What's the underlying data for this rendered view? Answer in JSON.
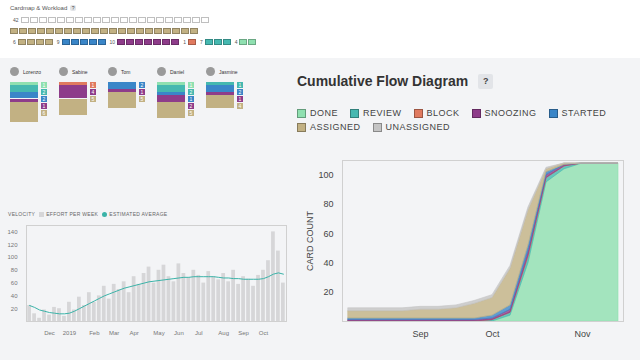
{
  "help_icon": "?",
  "cardmap": {
    "title": "Cardmap & Workload",
    "rows": [
      [
        {
          "status": "UNASSIGNED",
          "label": 42,
          "boxes": 21
        }
      ],
      [
        {
          "status": "ASSIGNED",
          "boxes": 21
        }
      ],
      [
        {
          "status": "ASSIGNED",
          "label": 6,
          "boxes": 4
        },
        {
          "status": "STARTED",
          "label": 9,
          "boxes": 5
        },
        {
          "status": "SNOOZING",
          "label": 10,
          "boxes": 7
        },
        {
          "status": "BLOCK",
          "label": 1,
          "boxes": 1
        },
        {
          "status": "REVIEW",
          "label": 7,
          "boxes": 3
        },
        {
          "status": "DONE",
          "label": 4,
          "boxes": 2
        }
      ]
    ]
  },
  "workload": [
    {
      "name": "Lorenzo",
      "segments": [
        {
          "status": "DONE",
          "count": 1
        },
        {
          "status": "REVIEW",
          "count": 2
        },
        {
          "status": "STARTED",
          "count": 2
        },
        {
          "status": "SNOOZING",
          "count": 1
        },
        {
          "status": "ASSIGNED",
          "count": 6
        }
      ]
    },
    {
      "name": "Sabine",
      "segments": [
        {
          "status": "BLOCK",
          "count": 1
        },
        {
          "status": "SNOOZING",
          "count": 4
        },
        {
          "status": "ASSIGNED",
          "count": 5
        }
      ]
    },
    {
      "name": "Tom",
      "segments": [
        {
          "status": "STARTED",
          "count": 2
        },
        {
          "status": "SNOOZING",
          "count": 1
        },
        {
          "status": "ASSIGNED",
          "count": 5
        }
      ]
    },
    {
      "name": "Daniel",
      "segments": [
        {
          "status": "DONE",
          "count": 1
        },
        {
          "status": "REVIEW",
          "count": 2
        },
        {
          "status": "STARTED",
          "count": 1
        },
        {
          "status": "SNOOZING",
          "count": 2
        },
        {
          "status": "ASSIGNED",
          "count": 5
        }
      ]
    },
    {
      "name": "Jasmine",
      "segments": [
        {
          "status": "REVIEW",
          "count": 1
        },
        {
          "status": "STARTED",
          "count": 2
        },
        {
          "status": "SNOOZING",
          "count": 1
        },
        {
          "status": "ASSIGNED",
          "count": 4
        }
      ]
    }
  ],
  "chart_data": [
    {
      "type": "bar",
      "title": "VELOCITY",
      "categories": [
        null,
        null,
        null,
        null,
        "Dec",
        null,
        null,
        null,
        "2019",
        null,
        null,
        null,
        null,
        "Feb",
        null,
        null,
        null,
        "Mar",
        null,
        null,
        null,
        "Apr",
        null,
        null,
        null,
        null,
        "May",
        null,
        null,
        null,
        "Jun",
        null,
        null,
        null,
        "Jul",
        null,
        null,
        null,
        null,
        "Aug",
        null,
        null,
        null,
        "Sep",
        null,
        null,
        null,
        "Oct",
        null,
        null,
        null,
        null
      ],
      "series": [
        {
          "name": "EFFORT PER WEEK",
          "type": "bar",
          "color": "#d6d6d8",
          "values": [
            25,
            12,
            5,
            18,
            10,
            22,
            20,
            8,
            30,
            18,
            38,
            25,
            45,
            30,
            40,
            55,
            35,
            58,
            50,
            62,
            45,
            70,
            58,
            75,
            85,
            60,
            80,
            88,
            70,
            62,
            90,
            75,
            68,
            80,
            72,
            60,
            78,
            70,
            65,
            75,
            62,
            80,
            58,
            70,
            66,
            55,
            72,
            80,
            95,
            140,
            110,
            60
          ]
        },
        {
          "name": "ESTIMATED AVERAGE",
          "type": "line",
          "color": "#3bb3a8",
          "values": [
            25,
            22,
            18,
            16,
            14,
            13,
            12,
            12,
            13,
            16,
            20,
            24,
            28,
            32,
            36,
            40,
            43,
            46,
            49,
            52,
            54,
            56,
            58,
            60,
            62,
            63,
            64,
            65,
            66,
            67,
            68,
            69,
            69,
            70,
            70,
            70,
            70,
            70,
            69,
            68,
            68,
            67,
            67,
            66,
            66,
            66,
            66,
            67,
            70,
            74,
            76,
            74
          ]
        }
      ],
      "ylim": [
        0,
        150
      ],
      "yticks": [
        20,
        40,
        60,
        80,
        100,
        120,
        140
      ],
      "grid": false,
      "legend": "top"
    },
    {
      "type": "area",
      "title": "Cumulative Flow Diagram",
      "y_label": "CARD COUNT",
      "stacked": true,
      "categories": [
        null,
        null,
        null,
        null,
        "Sep",
        null,
        null,
        null,
        "Oct",
        null,
        null,
        null,
        null,
        "Nov",
        null,
        null
      ],
      "series": [
        {
          "name": "DONE",
          "color": "#8fe0b0",
          "values": [
            0,
            0,
            0,
            0,
            0,
            0,
            0,
            0,
            0,
            4,
            40,
            95,
            104,
            108,
            108,
            108
          ]
        },
        {
          "name": "REVIEW",
          "color": "#45b8b0",
          "values": [
            0,
            0,
            0,
            0,
            0,
            0,
            0,
            0,
            1,
            2,
            4,
            3,
            2,
            0,
            0,
            0
          ]
        },
        {
          "name": "BLOCK",
          "color": "#e07a5f",
          "values": [
            0,
            0,
            0,
            0,
            0,
            0,
            0,
            0,
            0,
            0,
            1,
            0,
            0,
            0,
            0,
            0
          ]
        },
        {
          "name": "SNOOZING",
          "color": "#8e3c8a",
          "values": [
            1,
            1,
            1,
            1,
            1,
            1,
            1,
            1,
            1,
            2,
            3,
            2,
            1,
            0,
            0,
            0
          ]
        },
        {
          "name": "STARTED",
          "color": "#3a86c8",
          "values": [
            1,
            1,
            1,
            1,
            1,
            1,
            1,
            1,
            2,
            3,
            4,
            2,
            0,
            0,
            0,
            0
          ]
        },
        {
          "name": "ASSIGNED",
          "color": "#c2b183",
          "values": [
            5,
            5,
            5,
            5,
            6,
            6,
            7,
            10,
            12,
            25,
            24,
            2,
            1,
            0,
            0,
            0
          ]
        },
        {
          "name": "UNASSIGNED",
          "color": "#c4c4c4",
          "values": [
            2,
            2,
            2,
            2,
            2,
            2,
            2,
            2,
            2,
            2,
            2,
            1,
            0,
            0,
            0,
            0
          ]
        }
      ],
      "ylim": [
        0,
        110
      ],
      "yticks": [
        20,
        40,
        60,
        80,
        100
      ],
      "grid": false,
      "legend": "top"
    }
  ]
}
